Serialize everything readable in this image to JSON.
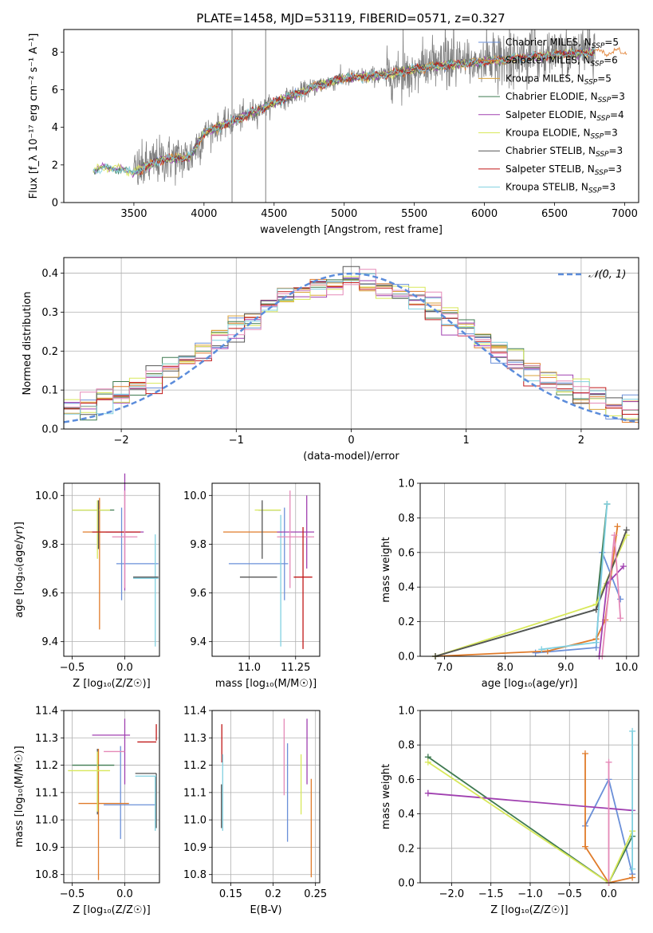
{
  "figure": {
    "title": "PLATE=1458, MJD=53119, FIBERID=0571, z=0.327"
  },
  "colors": {
    "Chabrier MILES": "#6a8fd8",
    "Salpeter MILES": "#e07b2a",
    "Kroupa MILES": "#d9a23a",
    "Chabrier ELODIE": "#3f7a50",
    "Salpeter ELODIE": "#a040b0",
    "Kroupa ELODIE": "#d8e85a",
    "Chabrier STELIB": "#555555",
    "Salpeter STELIB": "#c01818",
    "Kroupa STELIB": "#80d0e0",
    "pink": "#e58ab8",
    "gaussian": "#5b8cdb",
    "grid": "#b0b0b0"
  },
  "chart_data": [
    {
      "id": "spectrum",
      "type": "line",
      "xlabel": "wavelength [Angstrom, rest frame]",
      "ylabel": "Flux [f_λ 10⁻¹⁷ erg cm⁻² s⁻¹ A⁻¹]",
      "xlim": [
        3000,
        7100
      ],
      "ylim": [
        0,
        9.2
      ],
      "xticks": [
        "3500",
        "4000",
        "4500",
        "5000",
        "5500",
        "6000",
        "6500",
        "7000"
      ],
      "yticks": [
        "0",
        "2",
        "4",
        "6",
        "8"
      ],
      "grid": false,
      "legend_position": "top-right",
      "legend": [
        {
          "label": "Chabrier MILES, N",
          "sub": "SSP",
          "tail": "=5"
        },
        {
          "label": "Salpeter MILES, N",
          "sub": "SSP",
          "tail": "=6"
        },
        {
          "label": "Kroupa MILES, N",
          "sub": "SSP",
          "tail": "=5"
        },
        {
          "label": "Chabrier ELODIE, N",
          "sub": "SSP",
          "tail": "=3"
        },
        {
          "label": "Salpeter ELODIE, N",
          "sub": "SSP",
          "tail": "=4"
        },
        {
          "label": "Kroupa ELODIE, N",
          "sub": "SSP",
          "tail": "=3"
        },
        {
          "label": "Chabrier STELIB, N",
          "sub": "SSP",
          "tail": "=3"
        },
        {
          "label": "Salpeter STELIB, N",
          "sub": "SSP",
          "tail": "=3"
        },
        {
          "label": "Kroupa STELIB, N",
          "sub": "SSP",
          "tail": "=3"
        }
      ],
      "data_range_A": [
        3210,
        6790
      ],
      "continuum_knots": [
        [
          3210,
          1.7
        ],
        [
          3300,
          1.9
        ],
        [
          3500,
          1.6
        ],
        [
          3700,
          2.3
        ],
        [
          3900,
          2.4
        ],
        [
          4000,
          3.7
        ],
        [
          4200,
          4.3
        ],
        [
          4500,
          5.3
        ],
        [
          4800,
          6.2
        ],
        [
          5000,
          6.6
        ],
        [
          5300,
          6.8
        ],
        [
          5600,
          7.2
        ],
        [
          6000,
          7.5
        ],
        [
          6400,
          7.8
        ],
        [
          6790,
          8.0
        ]
      ]
    },
    {
      "id": "residual-histogram",
      "type": "histogram",
      "xlabel": "(data-model)/error",
      "ylabel": "Normed distribution",
      "xlim": [
        -2.5,
        2.5
      ],
      "ylim": [
        0,
        0.44
      ],
      "xticks": [
        "−2",
        "−1",
        "0",
        "1",
        "2"
      ],
      "yticks": [
        "0.0",
        "0.1",
        "0.2",
        "0.3",
        "0.4"
      ],
      "grid": true,
      "legend_position": "top-right",
      "legend": [
        {
          "label": "𝒩(0, 1)"
        }
      ],
      "bins": 35,
      "reference_curve": "gaussian mean 0, sigma 1"
    },
    {
      "id": "age-vs-metallicity",
      "type": "errorbar",
      "xlabel": "Z [log₁₀(Z/Z☉)]",
      "ylabel": "age  [log₁₀(age/yr)]",
      "xlim": [
        -0.58,
        0.33
      ],
      "ylim": [
        9.34,
        10.05
      ],
      "xticks": [
        -0.5,
        0.0
      ],
      "yticks": [
        9.4,
        9.6,
        9.8,
        10.0
      ],
      "points": [
        {
          "series": "Chabrier MILES",
          "x": -0.03,
          "xerr": 0.0,
          "y": 9.76,
          "yerr": 0.19
        },
        {
          "series": "Chabrier MILES",
          "x": 0.12,
          "xerr": 0.2,
          "y": 9.72,
          "yerr": 0.0
        },
        {
          "series": "Salpeter MILES",
          "x": -0.24,
          "xerr": 0.0,
          "y": 9.72,
          "yerr": 0.27
        },
        {
          "series": "Salpeter MILES",
          "x": -0.2,
          "xerr": 0.2,
          "y": 9.85,
          "yerr": 0.0
        },
        {
          "series": "Chabrier ELODIE",
          "x": -0.3,
          "xerr": 0.2,
          "y": 9.94,
          "yerr": 0.0
        },
        {
          "series": "Salpeter ELODIE",
          "x": 0.0,
          "xerr": 0.18,
          "y": 9.85,
          "yerr": 0.24
        },
        {
          "series": "Kroupa ELODIE",
          "x": -0.26,
          "xerr": 0.0,
          "y": 9.86,
          "yerr": 0.12
        },
        {
          "series": "Kroupa ELODIE",
          "x": -0.32,
          "xerr": 0.18,
          "y": 9.94,
          "yerr": 0.0
        },
        {
          "series": "Chabrier STELIB",
          "x": -0.25,
          "xerr": 0.0,
          "y": 9.88,
          "yerr": 0.1
        },
        {
          "series": "Salpeter STELIB",
          "x": -0.08,
          "xerr": 0.23,
          "y": 9.85,
          "yerr": 0.0
        },
        {
          "series": "Kroupa STELIB",
          "x": 0.29,
          "xerr": 0.0,
          "y": 9.61,
          "yerr": 0.23
        },
        {
          "series": "Kroupa STELIB",
          "x": 0.2,
          "xerr": 0.12,
          "y": 9.66,
          "yerr": 0.0
        },
        {
          "series": "Chabrier STELIB",
          "x": 0.2,
          "xerr": 0.12,
          "y": 9.665,
          "yerr": 0.0
        },
        {
          "series": "pink",
          "x": 0.0,
          "xerr": 0.0,
          "y": 9.82,
          "yerr": 0.2
        },
        {
          "series": "pink",
          "x": 0.0,
          "xerr": 0.12,
          "y": 9.83,
          "yerr": 0.0
        }
      ]
    },
    {
      "id": "age-vs-mass",
      "type": "errorbar",
      "xlabel": "mass [log₁₀(M/M☉)]",
      "ylabel": "",
      "xlim": [
        10.8,
        11.38
      ],
      "ylim": [
        9.34,
        10.05
      ],
      "xticks": [
        11.0,
        11.25
      ],
      "yticks": [
        9.4,
        9.6,
        9.8,
        10.0
      ],
      "points": [
        {
          "series": "Salpeter MILES",
          "x": 11.02,
          "xerr": 0.16,
          "y": 9.85,
          "yerr": 0.0
        },
        {
          "series": "Chabrier ELODIE",
          "x": 11.11,
          "xerr": 0.06,
          "y": 9.94,
          "yerr": 0.0
        },
        {
          "series": "Kroupa ELODIE",
          "x": 11.1,
          "xerr": 0.07,
          "y": 9.94,
          "yerr": 0.0
        },
        {
          "series": "Chabrier STELIB",
          "x": 11.07,
          "xerr": 0.0,
          "y": 9.86,
          "yerr": 0.12
        },
        {
          "series": "Chabrier STELIB",
          "x": 11.05,
          "xerr": 0.1,
          "y": 9.665,
          "yerr": 0.0
        },
        {
          "series": "Chabrier MILES",
          "x": 11.05,
          "xerr": 0.16,
          "y": 9.72,
          "yerr": 0.0
        },
        {
          "series": "Chabrier MILES",
          "x": 11.19,
          "xerr": 0.0,
          "y": 9.76,
          "yerr": 0.19
        },
        {
          "series": "Kroupa STELIB",
          "x": 11.17,
          "xerr": 0.0,
          "y": 9.65,
          "yerr": 0.27
        },
        {
          "series": "Salpeter ELODIE",
          "x": 11.25,
          "xerr": 0.1,
          "y": 9.85,
          "yerr": 0.0
        },
        {
          "series": "Salpeter ELODIE",
          "x": 11.31,
          "xerr": 0.0,
          "y": 9.85,
          "yerr": 0.15
        },
        {
          "series": "pink",
          "x": 11.22,
          "xerr": 0.0,
          "y": 9.82,
          "yerr": 0.2
        },
        {
          "series": "pink",
          "x": 11.25,
          "xerr": 0.1,
          "y": 9.83,
          "yerr": 0.0
        },
        {
          "series": "Salpeter STELIB",
          "x": 11.29,
          "xerr": 0.0,
          "y": 9.62,
          "yerr": 0.25
        },
        {
          "series": "Salpeter STELIB",
          "x": 11.29,
          "xerr": 0.05,
          "y": 9.665,
          "yerr": 0.0
        }
      ]
    },
    {
      "id": "mass-weight-vs-age",
      "type": "line",
      "xlabel": "age  [log₁₀(age/yr)]",
      "ylabel": "mass weight",
      "xlim": [
        6.6,
        10.2
      ],
      "ylim": [
        0,
        1.0
      ],
      "xticks": [
        7,
        8,
        9,
        10
      ],
      "yticks": [
        0.0,
        0.2,
        0.4,
        0.6,
        0.8,
        1.0
      ],
      "grid": true,
      "series": [
        {
          "name": "Chabrier MILES",
          "x": [
            8.5,
            9.5,
            9.6,
            9.9
          ],
          "y": [
            0.02,
            0.05,
            0.6,
            0.33
          ]
        },
        {
          "name": "Salpeter MILES",
          "x": [
            6.85,
            8.7,
            9.5,
            9.65,
            9.85
          ],
          "y": [
            0.0,
            0.03,
            0.1,
            0.21,
            0.75
          ]
        },
        {
          "name": "Chabrier ELODIE",
          "x": [
            6.85,
            9.5,
            9.68
          ],
          "y": [
            0.0,
            0.27,
            0.88
          ]
        },
        {
          "name": "Salpeter ELODIE",
          "x": [
            9.55,
            9.68,
            9.95
          ],
          "y": [
            0.0,
            0.42,
            0.52
          ]
        },
        {
          "name": "Kroupa ELODIE",
          "x": [
            6.85,
            9.5,
            10.0
          ],
          "y": [
            0.0,
            0.3,
            0.7
          ]
        },
        {
          "name": "Chabrier STELIB",
          "x": [
            6.85,
            9.5,
            10.0
          ],
          "y": [
            0.0,
            0.27,
            0.73
          ]
        },
        {
          "name": "Kroupa STELIB",
          "x": [
            8.6,
            9.5,
            9.68
          ],
          "y": [
            0.04,
            0.08,
            0.88
          ]
        },
        {
          "name": "pink",
          "x": [
            9.6,
            9.8,
            9.9
          ],
          "y": [
            0.0,
            0.7,
            0.22
          ]
        }
      ]
    },
    {
      "id": "mass-vs-metallicity",
      "type": "errorbar",
      "xlabel": "Z [log₁₀(Z/Z☉)]",
      "ylabel": "mass [log₁₀(M/M☉)]",
      "xlim": [
        -0.58,
        0.33
      ],
      "ylim": [
        10.77,
        11.4
      ],
      "xticks": [
        -0.5,
        0.0
      ],
      "yticks": [
        10.8,
        10.9,
        11.0,
        11.1,
        11.2,
        11.3,
        11.4
      ],
      "points": [
        {
          "series": "Chabrier MILES",
          "x": -0.04,
          "xerr": 0.0,
          "y": 11.1,
          "yerr": 0.17
        },
        {
          "series": "Chabrier MILES",
          "x": 0.05,
          "xerr": 0.25,
          "y": 11.055,
          "yerr": 0.0
        },
        {
          "series": "Salpeter MILES",
          "x": -0.25,
          "xerr": 0.0,
          "y": 11.02,
          "yerr": 0.24
        },
        {
          "series": "Salpeter MILES",
          "x": -0.2,
          "xerr": 0.24,
          "y": 11.06,
          "yerr": 0.0
        },
        {
          "series": "Chabrier ELODIE",
          "x": -0.3,
          "xerr": 0.2,
          "y": 11.2,
          "yerr": 0.0
        },
        {
          "series": "Chabrier STELIB",
          "x": -0.26,
          "xerr": 0.0,
          "y": 11.14,
          "yerr": 0.12
        },
        {
          "series": "Kroupa ELODIE",
          "x": -0.26,
          "xerr": 0.0,
          "y": 11.14,
          "yerr": 0.11
        },
        {
          "series": "Kroupa ELODIE",
          "x": -0.34,
          "xerr": 0.2,
          "y": 11.18,
          "yerr": 0.0
        },
        {
          "series": "Salpeter ELODIE",
          "x": 0.0,
          "xerr": 0.0,
          "y": 11.25,
          "yerr": 0.12
        },
        {
          "series": "Salpeter ELODIE",
          "x": -0.13,
          "xerr": 0.18,
          "y": 11.31,
          "yerr": 0.0
        },
        {
          "series": "pink",
          "x": -0.1,
          "xerr": 0.1,
          "y": 11.25,
          "yerr": 0.0
        },
        {
          "series": "Salpeter STELIB",
          "x": 0.3,
          "xerr": 0.0,
          "y": 11.32,
          "yerr": 0.03
        },
        {
          "series": "Salpeter STELIB",
          "x": 0.21,
          "xerr": 0.09,
          "y": 11.285,
          "yerr": 0.0
        },
        {
          "series": "Chabrier STELIB",
          "x": 0.3,
          "xerr": 0.0,
          "y": 11.07,
          "yerr": 0.1
        },
        {
          "series": "Chabrier STELIB",
          "x": 0.2,
          "xerr": 0.1,
          "y": 11.17,
          "yerr": 0.0
        },
        {
          "series": "Kroupa STELIB",
          "x": 0.29,
          "xerr": 0.0,
          "y": 11.06,
          "yerr": 0.1
        },
        {
          "series": "Kroupa STELIB",
          "x": 0.2,
          "xerr": 0.1,
          "y": 11.16,
          "yerr": 0.0
        }
      ]
    },
    {
      "id": "mass-vs-extinction",
      "type": "errorbar",
      "xlabel": "E(B-V)",
      "ylabel": "",
      "xlim": [
        0.128,
        0.255
      ],
      "ylim": [
        10.77,
        11.4
      ],
      "xticks": [
        0.15,
        0.2,
        0.25
      ],
      "yticks": [
        10.8,
        10.9,
        11.0,
        11.1,
        11.2,
        11.3,
        11.4
      ],
      "points": [
        {
          "series": "Salpeter STELIB",
          "x": 0.1395,
          "xerr": 0.0,
          "y": 11.28,
          "yerr": 0.07
        },
        {
          "series": "Kroupa STELIB",
          "x": 0.1405,
          "xerr": 0.0,
          "y": 11.1,
          "yerr": 0.14
        },
        {
          "series": "Chabrier STELIB",
          "x": 0.139,
          "xerr": 0.0,
          "y": 11.05,
          "yerr": 0.08
        },
        {
          "series": "pink",
          "x": 0.213,
          "xerr": 0.0,
          "y": 11.23,
          "yerr": 0.14
        },
        {
          "series": "Chabrier MILES",
          "x": 0.217,
          "xerr": 0.0,
          "y": 11.1,
          "yerr": 0.18
        },
        {
          "series": "Kroupa ELODIE",
          "x": 0.233,
          "xerr": 0.0,
          "y": 11.13,
          "yerr": 0.11
        },
        {
          "series": "Salpeter ELODIE",
          "x": 0.24,
          "xerr": 0.0,
          "y": 11.25,
          "yerr": 0.12
        },
        {
          "series": "Salpeter MILES",
          "x": 0.245,
          "xerr": 0.0,
          "y": 10.97,
          "yerr": 0.18
        }
      ]
    },
    {
      "id": "mass-weight-vs-metallicity",
      "type": "line",
      "xlabel": "Z [log₁₀(Z/Z☉)]",
      "ylabel": "mass weight",
      "xlim": [
        -2.4,
        0.38
      ],
      "ylim": [
        0,
        1.0
      ],
      "xticks": [
        -2.0,
        -1.5,
        -1.0,
        -0.5,
        0.0
      ],
      "yticks": [
        0.0,
        0.2,
        0.4,
        0.6,
        0.8,
        1.0
      ],
      "grid": true,
      "series": [
        {
          "name": "Chabrier MILES",
          "x": [
            -0.3,
            0.0,
            0.3
          ],
          "y": [
            0.33,
            0.6,
            0.05
          ]
        },
        {
          "name": "Salpeter MILES",
          "x": [
            -0.3,
            -0.3,
            0.0,
            0.3
          ],
          "y": [
            0.75,
            0.21,
            0.0,
            0.03
          ]
        },
        {
          "name": "Chabrier ELODIE",
          "x": [
            -2.3,
            0.0,
            0.3
          ],
          "y": [
            0.73,
            0.0,
            0.27
          ]
        },
        {
          "name": "Salpeter ELODIE",
          "x": [
            -2.3,
            0.3
          ],
          "y": [
            0.52,
            0.42
          ]
        },
        {
          "name": "Kroupa ELODIE",
          "x": [
            -2.3,
            0.0,
            0.3
          ],
          "y": [
            0.7,
            0.0,
            0.3
          ]
        },
        {
          "name": "Kroupa STELIB",
          "x": [
            0.3,
            0.3
          ],
          "y": [
            0.08,
            0.88
          ]
        },
        {
          "name": "pink",
          "x": [
            0.0,
            0.0
          ],
          "y": [
            0.0,
            0.7
          ]
        }
      ]
    }
  ]
}
